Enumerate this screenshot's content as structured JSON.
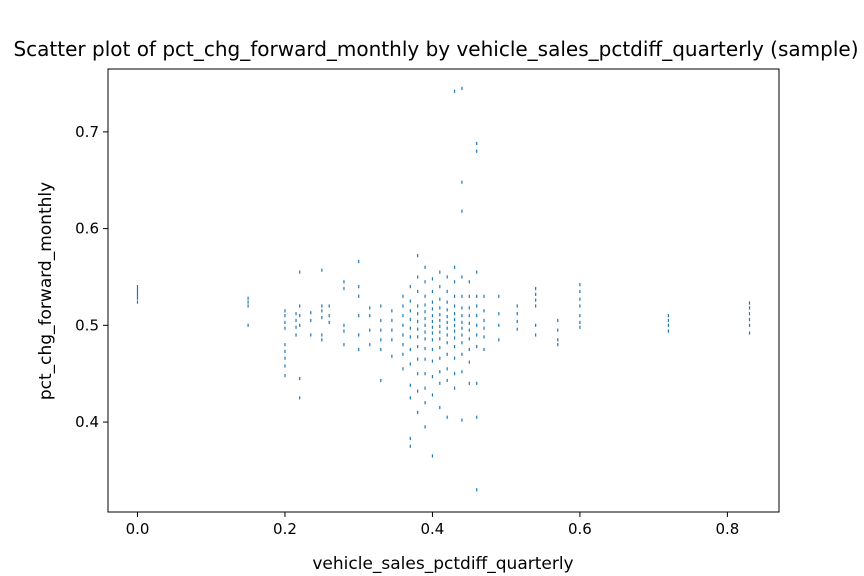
{
  "chart_data": {
    "type": "scatter",
    "title": "Scatter plot of pct_chg_forward_monthly by vehicle_sales_pctdiff_quarterly (sample)",
    "xlabel": "vehicle_sales_pctdiff_quarterly",
    "ylabel": "pct_chg_forward_monthly",
    "xlim": [
      -0.04,
      0.87
    ],
    "ylim": [
      0.307,
      0.765
    ],
    "xticks": [
      0.0,
      0.2,
      0.4,
      0.6,
      0.8
    ],
    "xtick_labels": [
      "0.0",
      "0.2",
      "0.4",
      "0.6",
      "0.8"
    ],
    "yticks": [
      0.4,
      0.5,
      0.6,
      0.7
    ],
    "ytick_labels": [
      "0.4",
      "0.5",
      "0.6",
      "0.7"
    ],
    "grid": false,
    "legend": false,
    "marker_color": "#1f77b4",
    "x_columns": [
      0.0,
      0.15,
      0.2,
      0.215,
      0.22,
      0.235,
      0.25,
      0.26,
      0.28,
      0.3,
      0.315,
      0.33,
      0.345,
      0.36,
      0.37,
      0.38,
      0.39,
      0.4,
      0.41,
      0.42,
      0.43,
      0.44,
      0.45,
      0.46,
      0.47,
      0.49,
      0.515,
      0.54,
      0.57,
      0.6,
      0.72,
      0.83
    ],
    "points": [
      {
        "x": 0.0,
        "y": 0.54
      },
      {
        "x": 0.0,
        "y": 0.537
      },
      {
        "x": 0.0,
        "y": 0.534
      },
      {
        "x": 0.0,
        "y": 0.531
      },
      {
        "x": 0.0,
        "y": 0.528
      },
      {
        "x": 0.0,
        "y": 0.524
      },
      {
        "x": 0.15,
        "y": 0.528
      },
      {
        "x": 0.15,
        "y": 0.524
      },
      {
        "x": 0.15,
        "y": 0.52
      },
      {
        "x": 0.15,
        "y": 0.5
      },
      {
        "x": 0.2,
        "y": 0.515
      },
      {
        "x": 0.2,
        "y": 0.51
      },
      {
        "x": 0.2,
        "y": 0.503
      },
      {
        "x": 0.2,
        "y": 0.497
      },
      {
        "x": 0.2,
        "y": 0.48
      },
      {
        "x": 0.2,
        "y": 0.473
      },
      {
        "x": 0.2,
        "y": 0.466
      },
      {
        "x": 0.2,
        "y": 0.458
      },
      {
        "x": 0.2,
        "y": 0.448
      },
      {
        "x": 0.215,
        "y": 0.512
      },
      {
        "x": 0.215,
        "y": 0.505
      },
      {
        "x": 0.215,
        "y": 0.498
      },
      {
        "x": 0.215,
        "y": 0.49
      },
      {
        "x": 0.22,
        "y": 0.555
      },
      {
        "x": 0.22,
        "y": 0.52
      },
      {
        "x": 0.22,
        "y": 0.51
      },
      {
        "x": 0.22,
        "y": 0.5
      },
      {
        "x": 0.22,
        "y": 0.445
      },
      {
        "x": 0.22,
        "y": 0.425
      },
      {
        "x": 0.235,
        "y": 0.513
      },
      {
        "x": 0.235,
        "y": 0.505
      },
      {
        "x": 0.235,
        "y": 0.49
      },
      {
        "x": 0.25,
        "y": 0.557
      },
      {
        "x": 0.25,
        "y": 0.52
      },
      {
        "x": 0.25,
        "y": 0.515
      },
      {
        "x": 0.25,
        "y": 0.508
      },
      {
        "x": 0.25,
        "y": 0.49
      },
      {
        "x": 0.25,
        "y": 0.485
      },
      {
        "x": 0.26,
        "y": 0.52
      },
      {
        "x": 0.26,
        "y": 0.51
      },
      {
        "x": 0.26,
        "y": 0.503
      },
      {
        "x": 0.28,
        "y": 0.545
      },
      {
        "x": 0.28,
        "y": 0.538
      },
      {
        "x": 0.28,
        "y": 0.5
      },
      {
        "x": 0.28,
        "y": 0.494
      },
      {
        "x": 0.28,
        "y": 0.48
      },
      {
        "x": 0.3,
        "y": 0.566
      },
      {
        "x": 0.3,
        "y": 0.54
      },
      {
        "x": 0.3,
        "y": 0.53
      },
      {
        "x": 0.3,
        "y": 0.51
      },
      {
        "x": 0.3,
        "y": 0.49
      },
      {
        "x": 0.3,
        "y": 0.475
      },
      {
        "x": 0.315,
        "y": 0.518
      },
      {
        "x": 0.315,
        "y": 0.51
      },
      {
        "x": 0.315,
        "y": 0.495
      },
      {
        "x": 0.315,
        "y": 0.48
      },
      {
        "x": 0.33,
        "y": 0.52
      },
      {
        "x": 0.33,
        "y": 0.505
      },
      {
        "x": 0.33,
        "y": 0.495
      },
      {
        "x": 0.33,
        "y": 0.485
      },
      {
        "x": 0.33,
        "y": 0.475
      },
      {
        "x": 0.33,
        "y": 0.443
      },
      {
        "x": 0.345,
        "y": 0.515
      },
      {
        "x": 0.345,
        "y": 0.505
      },
      {
        "x": 0.345,
        "y": 0.495
      },
      {
        "x": 0.345,
        "y": 0.485
      },
      {
        "x": 0.345,
        "y": 0.468
      },
      {
        "x": 0.36,
        "y": 0.53
      },
      {
        "x": 0.36,
        "y": 0.52
      },
      {
        "x": 0.36,
        "y": 0.51
      },
      {
        "x": 0.36,
        "y": 0.5
      },
      {
        "x": 0.36,
        "y": 0.49
      },
      {
        "x": 0.36,
        "y": 0.48
      },
      {
        "x": 0.36,
        "y": 0.47
      },
      {
        "x": 0.36,
        "y": 0.455
      },
      {
        "x": 0.37,
        "y": 0.54
      },
      {
        "x": 0.37,
        "y": 0.525
      },
      {
        "x": 0.37,
        "y": 0.515
      },
      {
        "x": 0.37,
        "y": 0.506
      },
      {
        "x": 0.37,
        "y": 0.497
      },
      {
        "x": 0.37,
        "y": 0.488
      },
      {
        "x": 0.37,
        "y": 0.475
      },
      {
        "x": 0.37,
        "y": 0.46
      },
      {
        "x": 0.37,
        "y": 0.438
      },
      {
        "x": 0.37,
        "y": 0.425
      },
      {
        "x": 0.37,
        "y": 0.383
      },
      {
        "x": 0.37,
        "y": 0.375
      },
      {
        "x": 0.38,
        "y": 0.572
      },
      {
        "x": 0.38,
        "y": 0.55
      },
      {
        "x": 0.38,
        "y": 0.535
      },
      {
        "x": 0.38,
        "y": 0.52
      },
      {
        "x": 0.38,
        "y": 0.512
      },
      {
        "x": 0.38,
        "y": 0.504
      },
      {
        "x": 0.38,
        "y": 0.496
      },
      {
        "x": 0.38,
        "y": 0.488
      },
      {
        "x": 0.38,
        "y": 0.478
      },
      {
        "x": 0.38,
        "y": 0.465
      },
      {
        "x": 0.38,
        "y": 0.45
      },
      {
        "x": 0.38,
        "y": 0.432
      },
      {
        "x": 0.38,
        "y": 0.41
      },
      {
        "x": 0.39,
        "y": 0.56
      },
      {
        "x": 0.39,
        "y": 0.545
      },
      {
        "x": 0.39,
        "y": 0.53
      },
      {
        "x": 0.39,
        "y": 0.521
      },
      {
        "x": 0.39,
        "y": 0.514
      },
      {
        "x": 0.39,
        "y": 0.507
      },
      {
        "x": 0.39,
        "y": 0.5
      },
      {
        "x": 0.39,
        "y": 0.493
      },
      {
        "x": 0.39,
        "y": 0.486
      },
      {
        "x": 0.39,
        "y": 0.476
      },
      {
        "x": 0.39,
        "y": 0.465
      },
      {
        "x": 0.39,
        "y": 0.45
      },
      {
        "x": 0.39,
        "y": 0.435
      },
      {
        "x": 0.39,
        "y": 0.42
      },
      {
        "x": 0.39,
        "y": 0.395
      },
      {
        "x": 0.4,
        "y": 0.548
      },
      {
        "x": 0.4,
        "y": 0.535
      },
      {
        "x": 0.4,
        "y": 0.524
      },
      {
        "x": 0.4,
        "y": 0.517
      },
      {
        "x": 0.4,
        "y": 0.51
      },
      {
        "x": 0.4,
        "y": 0.504
      },
      {
        "x": 0.4,
        "y": 0.498
      },
      {
        "x": 0.4,
        "y": 0.492
      },
      {
        "x": 0.4,
        "y": 0.485
      },
      {
        "x": 0.4,
        "y": 0.475
      },
      {
        "x": 0.4,
        "y": 0.463
      },
      {
        "x": 0.4,
        "y": 0.447
      },
      {
        "x": 0.4,
        "y": 0.428
      },
      {
        "x": 0.4,
        "y": 0.365
      },
      {
        "x": 0.41,
        "y": 0.555
      },
      {
        "x": 0.41,
        "y": 0.54
      },
      {
        "x": 0.41,
        "y": 0.527
      },
      {
        "x": 0.41,
        "y": 0.518
      },
      {
        "x": 0.41,
        "y": 0.511
      },
      {
        "x": 0.41,
        "y": 0.505
      },
      {
        "x": 0.41,
        "y": 0.499
      },
      {
        "x": 0.41,
        "y": 0.493
      },
      {
        "x": 0.41,
        "y": 0.486
      },
      {
        "x": 0.41,
        "y": 0.477
      },
      {
        "x": 0.41,
        "y": 0.466
      },
      {
        "x": 0.41,
        "y": 0.452
      },
      {
        "x": 0.41,
        "y": 0.44
      },
      {
        "x": 0.41,
        "y": 0.415
      },
      {
        "x": 0.42,
        "y": 0.55
      },
      {
        "x": 0.42,
        "y": 0.535
      },
      {
        "x": 0.42,
        "y": 0.524
      },
      {
        "x": 0.42,
        "y": 0.516
      },
      {
        "x": 0.42,
        "y": 0.509
      },
      {
        "x": 0.42,
        "y": 0.503
      },
      {
        "x": 0.42,
        "y": 0.497
      },
      {
        "x": 0.42,
        "y": 0.49
      },
      {
        "x": 0.42,
        "y": 0.482
      },
      {
        "x": 0.42,
        "y": 0.47
      },
      {
        "x": 0.42,
        "y": 0.455
      },
      {
        "x": 0.42,
        "y": 0.443
      },
      {
        "x": 0.42,
        "y": 0.405
      },
      {
        "x": 0.43,
        "y": 0.742
      },
      {
        "x": 0.43,
        "y": 0.56
      },
      {
        "x": 0.43,
        "y": 0.545
      },
      {
        "x": 0.43,
        "y": 0.53
      },
      {
        "x": 0.43,
        "y": 0.52
      },
      {
        "x": 0.43,
        "y": 0.512
      },
      {
        "x": 0.43,
        "y": 0.506
      },
      {
        "x": 0.43,
        "y": 0.5
      },
      {
        "x": 0.43,
        "y": 0.494
      },
      {
        "x": 0.43,
        "y": 0.487
      },
      {
        "x": 0.43,
        "y": 0.478
      },
      {
        "x": 0.43,
        "y": 0.466
      },
      {
        "x": 0.43,
        "y": 0.45
      },
      {
        "x": 0.43,
        "y": 0.435
      },
      {
        "x": 0.44,
        "y": 0.745
      },
      {
        "x": 0.44,
        "y": 0.648
      },
      {
        "x": 0.44,
        "y": 0.618
      },
      {
        "x": 0.44,
        "y": 0.55
      },
      {
        "x": 0.44,
        "y": 0.53
      },
      {
        "x": 0.44,
        "y": 0.518
      },
      {
        "x": 0.44,
        "y": 0.51
      },
      {
        "x": 0.44,
        "y": 0.503
      },
      {
        "x": 0.44,
        "y": 0.497
      },
      {
        "x": 0.44,
        "y": 0.49
      },
      {
        "x": 0.44,
        "y": 0.482
      },
      {
        "x": 0.44,
        "y": 0.47
      },
      {
        "x": 0.44,
        "y": 0.452
      },
      {
        "x": 0.44,
        "y": 0.402
      },
      {
        "x": 0.45,
        "y": 0.545
      },
      {
        "x": 0.45,
        "y": 0.53
      },
      {
        "x": 0.45,
        "y": 0.518
      },
      {
        "x": 0.45,
        "y": 0.51
      },
      {
        "x": 0.45,
        "y": 0.502
      },
      {
        "x": 0.45,
        "y": 0.495
      },
      {
        "x": 0.45,
        "y": 0.486
      },
      {
        "x": 0.45,
        "y": 0.475
      },
      {
        "x": 0.45,
        "y": 0.462
      },
      {
        "x": 0.45,
        "y": 0.44
      },
      {
        "x": 0.46,
        "y": 0.688
      },
      {
        "x": 0.46,
        "y": 0.68
      },
      {
        "x": 0.46,
        "y": 0.555
      },
      {
        "x": 0.46,
        "y": 0.53
      },
      {
        "x": 0.46,
        "y": 0.52
      },
      {
        "x": 0.46,
        "y": 0.51
      },
      {
        "x": 0.46,
        "y": 0.5
      },
      {
        "x": 0.46,
        "y": 0.49
      },
      {
        "x": 0.46,
        "y": 0.478
      },
      {
        "x": 0.46,
        "y": 0.44
      },
      {
        "x": 0.46,
        "y": 0.405
      },
      {
        "x": 0.46,
        "y": 0.33
      },
      {
        "x": 0.47,
        "y": 0.53
      },
      {
        "x": 0.47,
        "y": 0.515
      },
      {
        "x": 0.47,
        "y": 0.505
      },
      {
        "x": 0.47,
        "y": 0.497
      },
      {
        "x": 0.47,
        "y": 0.488
      },
      {
        "x": 0.47,
        "y": 0.475
      },
      {
        "x": 0.49,
        "y": 0.53
      },
      {
        "x": 0.49,
        "y": 0.512
      },
      {
        "x": 0.49,
        "y": 0.5
      },
      {
        "x": 0.49,
        "y": 0.485
      },
      {
        "x": 0.515,
        "y": 0.52
      },
      {
        "x": 0.515,
        "y": 0.512
      },
      {
        "x": 0.515,
        "y": 0.504
      },
      {
        "x": 0.515,
        "y": 0.496
      },
      {
        "x": 0.54,
        "y": 0.538
      },
      {
        "x": 0.54,
        "y": 0.532
      },
      {
        "x": 0.54,
        "y": 0.526
      },
      {
        "x": 0.54,
        "y": 0.52
      },
      {
        "x": 0.54,
        "y": 0.5
      },
      {
        "x": 0.54,
        "y": 0.49
      },
      {
        "x": 0.57,
        "y": 0.505
      },
      {
        "x": 0.57,
        "y": 0.495
      },
      {
        "x": 0.57,
        "y": 0.485
      },
      {
        "x": 0.57,
        "y": 0.48
      },
      {
        "x": 0.6,
        "y": 0.542
      },
      {
        "x": 0.6,
        "y": 0.535
      },
      {
        "x": 0.6,
        "y": 0.527
      },
      {
        "x": 0.6,
        "y": 0.52
      },
      {
        "x": 0.6,
        "y": 0.51
      },
      {
        "x": 0.6,
        "y": 0.503
      },
      {
        "x": 0.6,
        "y": 0.498
      },
      {
        "x": 0.72,
        "y": 0.51
      },
      {
        "x": 0.72,
        "y": 0.505
      },
      {
        "x": 0.72,
        "y": 0.5
      },
      {
        "x": 0.72,
        "y": 0.494
      },
      {
        "x": 0.83,
        "y": 0.523
      },
      {
        "x": 0.83,
        "y": 0.518
      },
      {
        "x": 0.83,
        "y": 0.512
      },
      {
        "x": 0.83,
        "y": 0.506
      },
      {
        "x": 0.83,
        "y": 0.5
      },
      {
        "x": 0.83,
        "y": 0.492
      }
    ]
  }
}
